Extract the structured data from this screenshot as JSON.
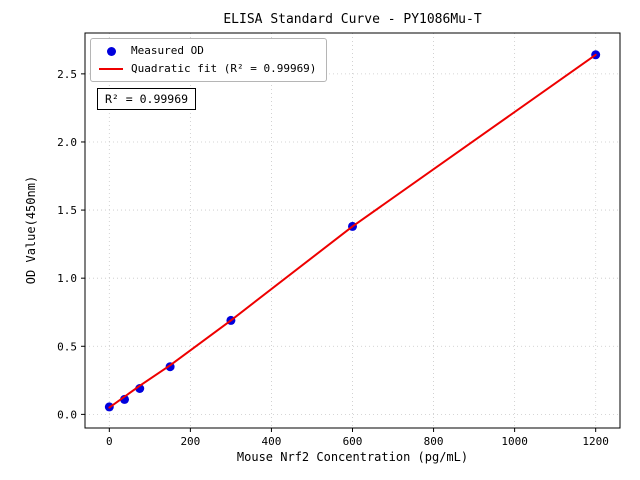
{
  "chart_data": {
    "type": "scatter",
    "title": "ELISA Standard Curve - PY1086Mu-T",
    "xlabel": "Mouse Nrf2 Concentration (pg/mL)",
    "ylabel": "OD Value(450nm)",
    "xlim": [
      -60,
      1260
    ],
    "ylim": [
      -0.1,
      2.8
    ],
    "xticks": [
      0,
      200,
      400,
      600,
      800,
      1000,
      1200
    ],
    "yticks": [
      0.0,
      0.5,
      1.0,
      1.5,
      2.0,
      2.5
    ],
    "ytick_labels": [
      "0.0",
      "0.5",
      "1.0",
      "1.5",
      "2.0",
      "2.5"
    ],
    "grid": true,
    "grid_style": "dotted",
    "series": [
      {
        "name": "Measured OD",
        "type": "scatter",
        "color": "#0000dd",
        "x": [
          0,
          37.5,
          75,
          150,
          300,
          600,
          1200
        ],
        "y": [
          0.055,
          0.11,
          0.19,
          0.35,
          0.69,
          1.38,
          2.64
        ]
      },
      {
        "name": "Quadratic fit (R² = 0.99969)",
        "type": "line",
        "color": "#ee0000",
        "x": [
          0,
          75,
          150,
          300,
          600,
          1200
        ],
        "y": [
          0.05,
          0.21,
          0.36,
          0.69,
          1.38,
          2.64
        ]
      }
    ],
    "legend": {
      "position": "upper left",
      "entries": [
        "Measured OD",
        "Quadratic fit (R² = 0.99969)"
      ]
    },
    "annotation": "R² = 0.99969"
  }
}
